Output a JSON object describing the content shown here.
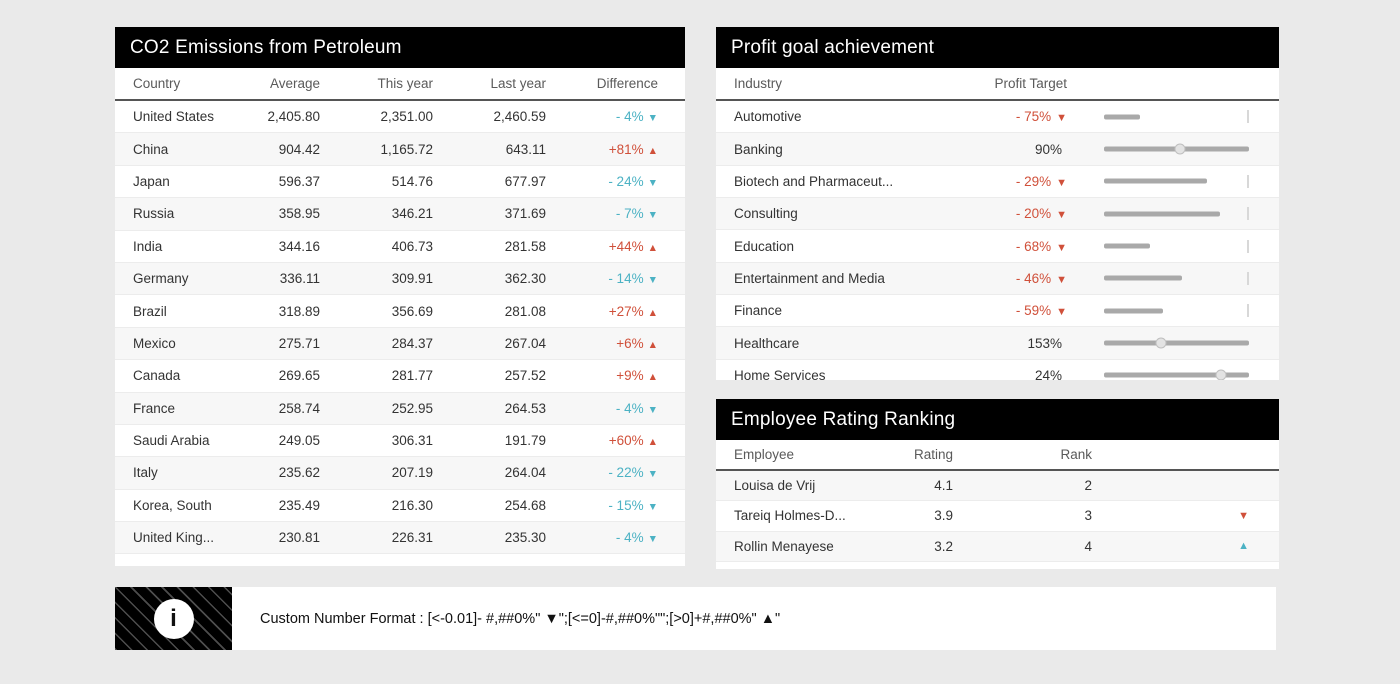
{
  "colors": {
    "red": "#d0503a",
    "teal": "#4cb2c4",
    "bar_gray": "#a9a9a9",
    "title_bar": "#000000",
    "page_bg": "#eaeaea"
  },
  "co2": {
    "title": "CO2 Emissions from Petroleum",
    "columns": [
      "Country",
      "Average",
      "This year",
      "Last year",
      "Difference"
    ],
    "rows": [
      {
        "country": "United States",
        "average": "2,405.80",
        "this_year": "2,351.00",
        "last_year": "2,460.59",
        "difference": "- 4%",
        "arrow": "▼",
        "color": "teal"
      },
      {
        "country": "China",
        "average": "904.42",
        "this_year": "1,165.72",
        "last_year": "643.11",
        "difference": "+81%",
        "arrow": "▲",
        "color": "red"
      },
      {
        "country": "Japan",
        "average": "596.37",
        "this_year": "514.76",
        "last_year": "677.97",
        "difference": "- 24%",
        "arrow": "▼",
        "color": "teal"
      },
      {
        "country": "Russia",
        "average": "358.95",
        "this_year": "346.21",
        "last_year": "371.69",
        "difference": "- 7%",
        "arrow": "▼",
        "color": "teal"
      },
      {
        "country": "India",
        "average": "344.16",
        "this_year": "406.73",
        "last_year": "281.58",
        "difference": "+44%",
        "arrow": "▲",
        "color": "red"
      },
      {
        "country": "Germany",
        "average": "336.11",
        "this_year": "309.91",
        "last_year": "362.30",
        "difference": "- 14%",
        "arrow": "▼",
        "color": "teal"
      },
      {
        "country": "Brazil",
        "average": "318.89",
        "this_year": "356.69",
        "last_year": "281.08",
        "difference": "+27%",
        "arrow": "▲",
        "color": "red"
      },
      {
        "country": "Mexico",
        "average": "275.71",
        "this_year": "284.37",
        "last_year": "267.04",
        "difference": "+6%",
        "arrow": "▲",
        "color": "red"
      },
      {
        "country": "Canada",
        "average": "269.65",
        "this_year": "281.77",
        "last_year": "257.52",
        "difference": "+9%",
        "arrow": "▲",
        "color": "red"
      },
      {
        "country": "France",
        "average": "258.74",
        "this_year": "252.95",
        "last_year": "264.53",
        "difference": "- 4%",
        "arrow": "▼",
        "color": "teal"
      },
      {
        "country": "Saudi Arabia",
        "average": "249.05",
        "this_year": "306.31",
        "last_year": "191.79",
        "difference": "+60%",
        "arrow": "▲",
        "color": "red"
      },
      {
        "country": "Italy",
        "average": "235.62",
        "this_year": "207.19",
        "last_year": "264.04",
        "difference": "- 22%",
        "arrow": "▼",
        "color": "teal"
      },
      {
        "country": "Korea, South",
        "average": "235.49",
        "this_year": "216.30",
        "last_year": "254.68",
        "difference": "- 15%",
        "arrow": "▼",
        "color": "teal"
      },
      {
        "country": "United King...",
        "average": "230.81",
        "this_year": "226.31",
        "last_year": "235.30",
        "difference": "- 4%",
        "arrow": "▼",
        "color": "teal"
      }
    ]
  },
  "profit": {
    "title": "Profit goal achievement",
    "columns": [
      "Industry",
      "Profit Target"
    ],
    "rows": [
      {
        "industry": "Automotive",
        "target": "- 75%",
        "arrow": "▼",
        "color": "red",
        "value_pct": -75,
        "bar_pct": 25,
        "marker": "tick"
      },
      {
        "industry": "Banking",
        "target": "90%",
        "arrow": "",
        "color": "dark",
        "value_pct": 90,
        "bar_pct": 100,
        "marker": "knob",
        "knob_pct": 52.6
      },
      {
        "industry": "Biotech and Pharmaceut...",
        "target": "- 29%",
        "arrow": "▼",
        "color": "red",
        "value_pct": -29,
        "bar_pct": 71,
        "marker": "tick"
      },
      {
        "industry": "Consulting",
        "target": "- 20%",
        "arrow": "▼",
        "color": "red",
        "value_pct": -20,
        "bar_pct": 80,
        "marker": "tick"
      },
      {
        "industry": "Education",
        "target": "- 68%",
        "arrow": "▼",
        "color": "red",
        "value_pct": -68,
        "bar_pct": 32,
        "marker": "tick"
      },
      {
        "industry": "Entertainment and Media",
        "target": "- 46%",
        "arrow": "▼",
        "color": "red",
        "value_pct": -46,
        "bar_pct": 54,
        "marker": "tick"
      },
      {
        "industry": "Finance",
        "target": "- 59%",
        "arrow": "▼",
        "color": "red",
        "value_pct": -59,
        "bar_pct": 41,
        "marker": "tick"
      },
      {
        "industry": "Healthcare",
        "target": "153%",
        "arrow": "",
        "color": "dark",
        "value_pct": 153,
        "bar_pct": 100,
        "marker": "knob",
        "knob_pct": 39.5
      },
      {
        "industry": "Home Services",
        "target": "24%",
        "arrow": "",
        "color": "dark",
        "value_pct": 24,
        "bar_pct": 100,
        "marker": "knob",
        "knob_pct": 80.6
      }
    ]
  },
  "employee": {
    "title": "Employee Rating Ranking",
    "columns": [
      "Employee",
      "Rating",
      "Rank"
    ],
    "rows": [
      {
        "name": "Louisa de Vrij",
        "rating": "4.1",
        "rank": "2",
        "arrow": "",
        "color": "dark"
      },
      {
        "name": "Tareiq Holmes-D...",
        "rating": "3.9",
        "rank": "3",
        "arrow": "▼",
        "color": "red"
      },
      {
        "name": "Rollin Menayese",
        "rating": "3.2",
        "rank": "4",
        "arrow": "▲",
        "color": "teal"
      }
    ]
  },
  "footer": {
    "note": "Custom Number Format : [<-0.01]- #,##0%\" ▼\";[<=0]-#,##0%\"\";[>0]+#,##0%\" ▲\"",
    "info_glyph": "i"
  }
}
